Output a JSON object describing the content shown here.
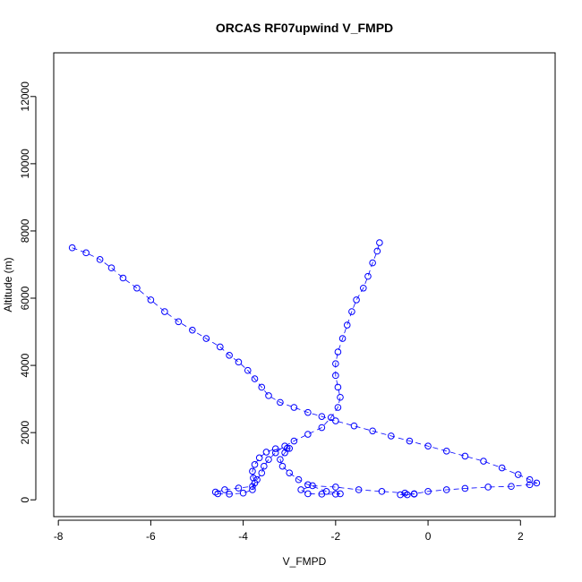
{
  "chart_data": {
    "type": "scatter",
    "title": "ORCAS RF07upwind V_FMPD",
    "xlabel": "V_FMPD",
    "ylabel": "Altitude (m)",
    "xlim": [
      -8.1,
      2.75
    ],
    "ylim": [
      -500,
      13300
    ],
    "xticks": [
      -8,
      -6,
      -4,
      -2,
      0,
      2
    ],
    "yticks": [
      0,
      2000,
      4000,
      6000,
      8000,
      10000,
      12000
    ],
    "grid": false,
    "marker": "open-circle",
    "color": "#0000ff",
    "connecting_line": "dashed",
    "series": [
      {
        "points": [
          [
            -7.7,
            7500
          ],
          [
            -7.4,
            7350
          ],
          [
            -7.1,
            7150
          ],
          [
            -6.85,
            6900
          ],
          [
            -6.6,
            6600
          ],
          [
            -6.3,
            6300
          ],
          [
            -6.0,
            5950
          ],
          [
            -5.7,
            5600
          ],
          [
            -5.4,
            5300
          ],
          [
            -5.1,
            5050
          ],
          [
            -4.8,
            4800
          ],
          [
            -4.5,
            4550
          ],
          [
            -4.3,
            4300
          ],
          [
            -4.1,
            4100
          ],
          [
            -3.9,
            3850
          ],
          [
            -3.75,
            3600
          ],
          [
            -3.6,
            3350
          ],
          [
            -3.45,
            3100
          ],
          [
            -3.2,
            2900
          ],
          [
            -2.9,
            2750
          ],
          [
            -2.6,
            2600
          ],
          [
            -2.3,
            2480
          ],
          [
            -2.0,
            2350
          ],
          [
            -1.6,
            2200
          ],
          [
            -1.2,
            2050
          ],
          [
            -0.8,
            1900
          ],
          [
            -0.4,
            1750
          ],
          [
            0.0,
            1600
          ],
          [
            0.4,
            1450
          ],
          [
            0.8,
            1300
          ],
          [
            1.2,
            1150
          ],
          [
            1.6,
            950
          ],
          [
            1.95,
            750
          ],
          [
            2.2,
            600
          ],
          [
            2.35,
            500
          ],
          [
            2.2,
            450
          ],
          [
            1.8,
            400
          ],
          [
            1.3,
            380
          ],
          [
            0.8,
            340
          ],
          [
            0.4,
            300
          ],
          [
            0.0,
            250
          ],
          [
            -0.3,
            180
          ],
          [
            -0.6,
            150
          ],
          [
            -0.45,
            150
          ],
          [
            -0.3,
            170
          ],
          [
            -0.5,
            200
          ],
          [
            -1.0,
            250
          ],
          [
            -1.5,
            300
          ],
          [
            -2.0,
            380
          ],
          [
            -2.5,
            420
          ],
          [
            -2.75,
            300
          ],
          [
            -2.6,
            180
          ],
          [
            -2.3,
            170
          ],
          [
            -2.0,
            170
          ],
          [
            -1.9,
            180
          ],
          [
            -2.2,
            250
          ],
          [
            -2.6,
            450
          ],
          [
            -2.8,
            600
          ],
          [
            -3.0,
            800
          ],
          [
            -3.15,
            1000
          ],
          [
            -3.2,
            1200
          ],
          [
            -3.1,
            1400
          ],
          [
            -3.0,
            1530
          ],
          [
            -3.05,
            1530
          ],
          [
            -3.3,
            1520
          ],
          [
            -3.5,
            1420
          ],
          [
            -3.65,
            1250
          ],
          [
            -3.75,
            1050
          ],
          [
            -3.8,
            850
          ],
          [
            -3.78,
            650
          ],
          [
            -3.75,
            500
          ],
          [
            -3.8,
            300
          ],
          [
            -4.0,
            200
          ],
          [
            -4.3,
            170
          ],
          [
            -4.55,
            180
          ],
          [
            -4.6,
            230
          ],
          [
            -4.4,
            300
          ],
          [
            -4.1,
            350
          ],
          [
            -3.8,
            400
          ],
          [
            -3.7,
            600
          ],
          [
            -3.6,
            800
          ],
          [
            -3.55,
            1000
          ],
          [
            -3.45,
            1200
          ],
          [
            -3.3,
            1400
          ],
          [
            -3.1,
            1600
          ],
          [
            -2.9,
            1750
          ],
          [
            -2.6,
            1950
          ],
          [
            -2.3,
            2150
          ],
          [
            -2.1,
            2450
          ],
          [
            -1.95,
            2750
          ],
          [
            -1.9,
            3050
          ],
          [
            -1.95,
            3350
          ],
          [
            -2.0,
            3700
          ],
          [
            -2.0,
            4050
          ],
          [
            -1.95,
            4400
          ],
          [
            -1.85,
            4800
          ],
          [
            -1.75,
            5200
          ],
          [
            -1.65,
            5600
          ],
          [
            -1.55,
            5950
          ],
          [
            -1.4,
            6300
          ],
          [
            -1.3,
            6650
          ],
          [
            -1.2,
            7050
          ],
          [
            -1.1,
            7400
          ],
          [
            -1.05,
            7650
          ]
        ]
      }
    ]
  }
}
